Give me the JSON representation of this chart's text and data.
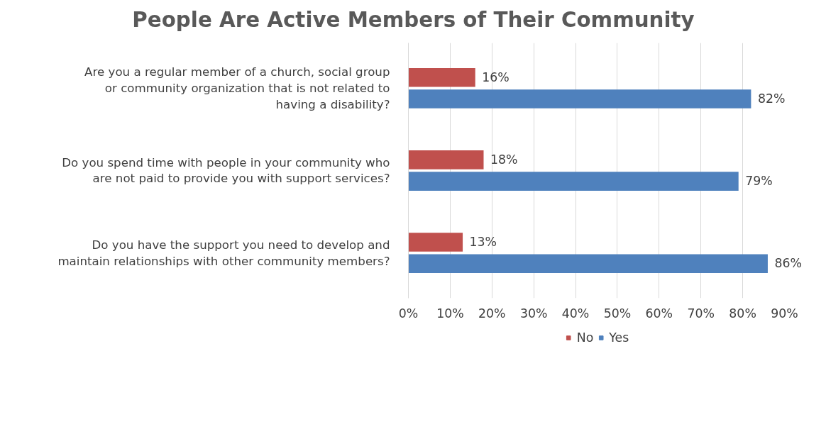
{
  "chart_data": {
    "type": "bar",
    "orientation": "horizontal",
    "title": "People Are Active Members of Their Community",
    "categories": [
      "Are you a regular member of a church, social group or community organization that is not related to having a disability?",
      "Do you spend time with people in your community who are not paid to provide you with support services?",
      "Do you have the support you need to develop and maintain relationships with other community members?"
    ],
    "series": [
      {
        "name": "No",
        "color": "#c0504d",
        "values": [
          16,
          18,
          13
        ],
        "value_labels": [
          "16%",
          "18%",
          "13%"
        ]
      },
      {
        "name": "Yes",
        "color": "#4f81bd",
        "values": [
          82,
          79,
          86
        ],
        "value_labels": [
          "82%",
          "79%",
          "86%"
        ]
      }
    ],
    "xlim": [
      0,
      90
    ],
    "xticks": [
      {
        "value": 0,
        "label": "0%"
      },
      {
        "value": 10,
        "label": "10%"
      },
      {
        "value": 20,
        "label": "20%"
      },
      {
        "value": 30,
        "label": "30%"
      },
      {
        "value": 40,
        "label": "40%"
      },
      {
        "value": 50,
        "label": "50%"
      },
      {
        "value": 60,
        "label": "60%"
      },
      {
        "value": 70,
        "label": "70%"
      },
      {
        "value": 80,
        "label": "80%"
      },
      {
        "value": 90,
        "label": "90%"
      }
    ],
    "grid": "x",
    "legend": "bottom"
  }
}
